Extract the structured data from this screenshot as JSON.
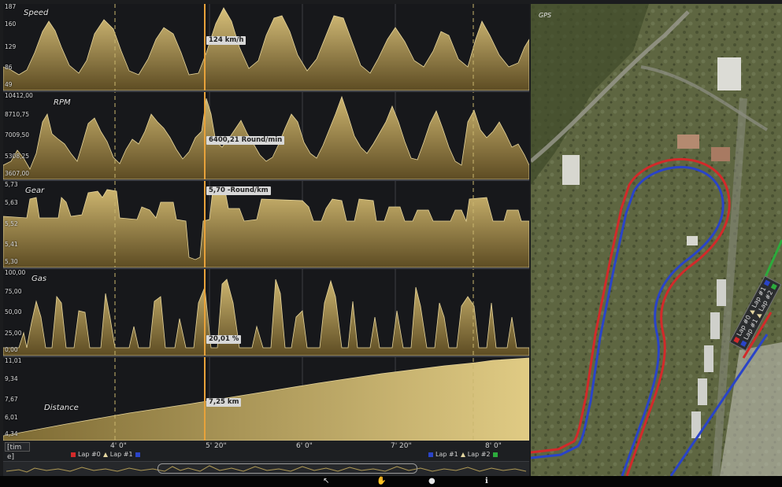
{
  "charts": {
    "speed": {
      "title": "Speed",
      "ticks": [
        "187",
        "160",
        "129",
        "86",
        "49"
      ],
      "readout": "124 km/h"
    },
    "rpm": {
      "title": "RPM",
      "ticks": [
        "10412,00",
        "8710,75",
        "7009,50",
        "5308,25",
        "3607,00"
      ],
      "readout": "6400,21 Round/min"
    },
    "gear": {
      "title": "Gear",
      "ticks": [
        "5,73",
        "5,63",
        "5,52",
        "5,41",
        "5,30"
      ],
      "readout": "5,70 -Round/km"
    },
    "gas": {
      "title": "Gas",
      "ticks": [
        "100,00",
        "75,00",
        "50,00",
        "25,00",
        "0,00"
      ],
      "readout": "20,01 %"
    },
    "distance": {
      "title": "Distance",
      "ticks": [
        "11,01",
        "9,34",
        "7,67",
        "6,01",
        "4,34"
      ],
      "readout": "7,25 km"
    }
  },
  "time_axis": {
    "unit_label": "[tim e]",
    "labels": [
      "4' 0\"",
      "5' 20\"",
      "6' 0\"",
      "7' 20\"",
      "8' 0\""
    ]
  },
  "lap_legend_left": {
    "lap0": "Lap #0",
    "lap1": "Lap #1"
  },
  "lap_legend_right": {
    "lap1": "Lap #1",
    "lap2": "Lap #2"
  },
  "gps": {
    "title": "GPS",
    "legend": [
      "Lap #0",
      "Lap #1",
      "Lap #2"
    ]
  },
  "colors": {
    "lap0": "#d22a2a",
    "lap1": "#2a44c8",
    "lap2": "#2cab3c",
    "fill": "#a8904a",
    "cursor": "#e8a23a"
  },
  "bottom_bar": {
    "icons": [
      "cursor-icon",
      "hand-icon",
      "zoom-icon",
      "info-icon"
    ]
  }
}
